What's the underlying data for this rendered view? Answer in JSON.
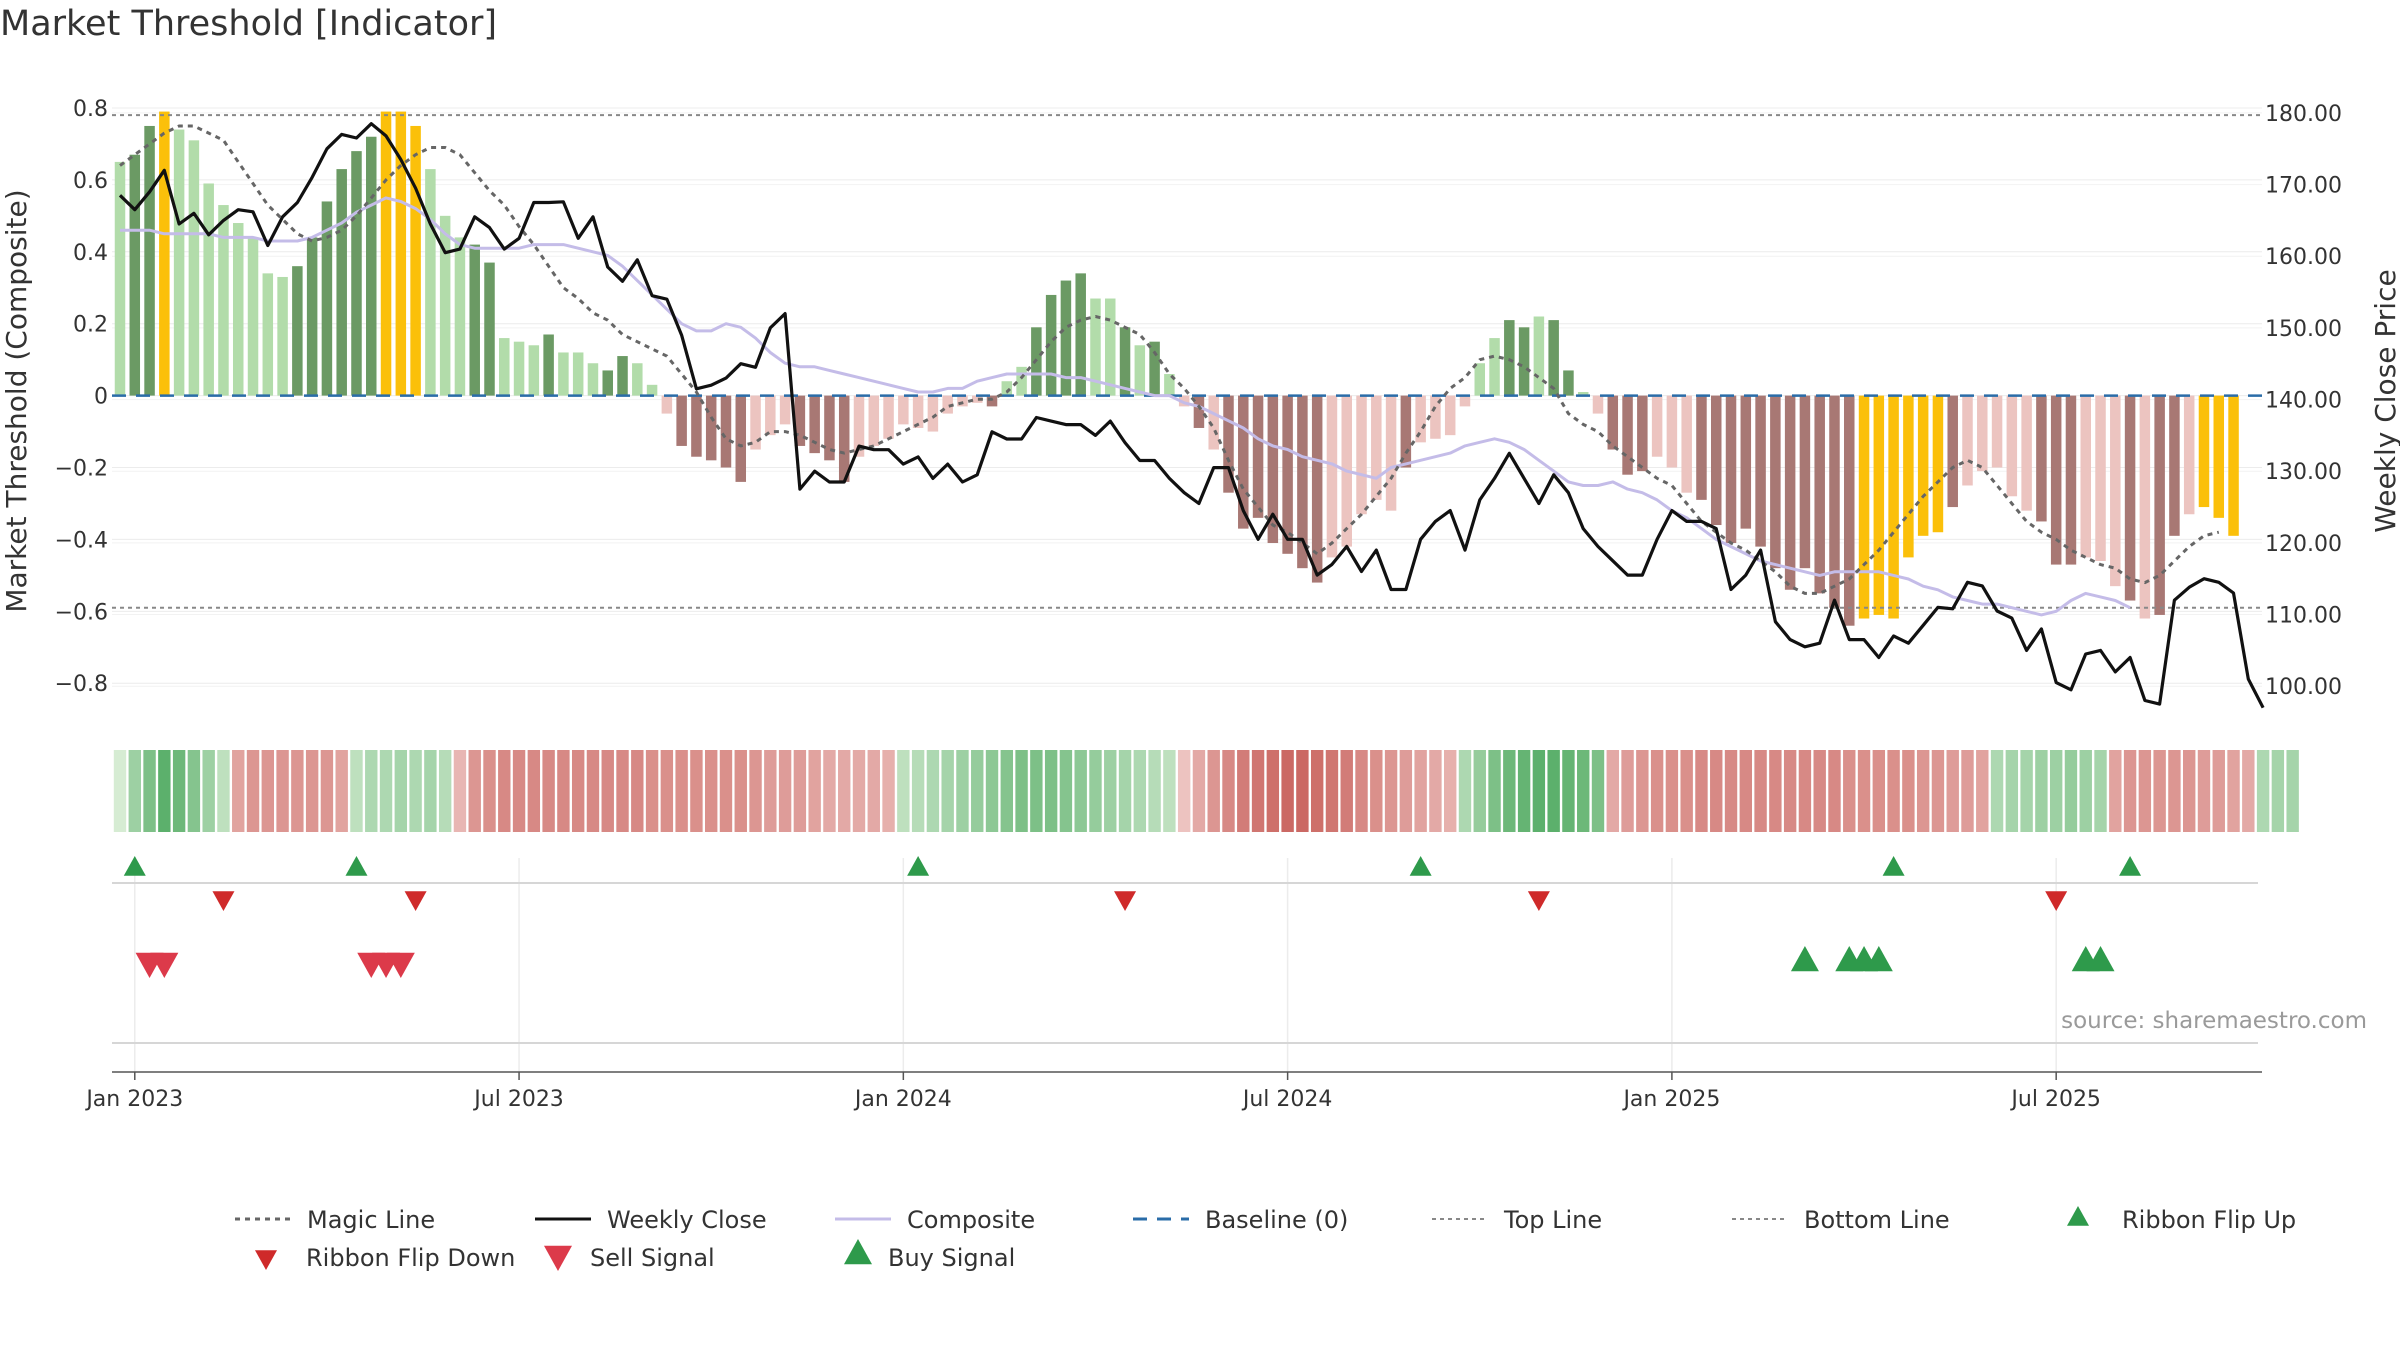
{
  "title": "Market Threshold [Indicator]",
  "source": "source: sharemaestro.com",
  "colors": {
    "magic": "#666666",
    "close": "#111111",
    "composite": "#c4bce8",
    "baseline": "#2a6ca8",
    "guides": "#888888",
    "bull_light": "#b2dcaa",
    "bull_dark": "#6b9a64",
    "extreme": "#fbc00a",
    "bear_light": "#ecc4c0",
    "bear_dark": "#a87874",
    "flip_up": "#2e9a4b",
    "flip_down": "#cf2a2a",
    "sell": "#dc3a4a",
    "buy": "#2e9a4b"
  },
  "chart_data": {
    "type": "bar",
    "title": "Market Threshold [Indicator]",
    "ylabel": "Market Threshold (Composite)",
    "y2label": "Weekly Close Price",
    "ylim": [
      -0.88,
      0.85
    ],
    "y2lim": [
      96.4,
      183.2
    ],
    "yticks": [
      {
        "v": 0.8,
        "t": "0.8"
      },
      {
        "v": 0.6,
        "t": "0.6"
      },
      {
        "v": 0.4,
        "t": "0.4"
      },
      {
        "v": 0.2,
        "t": "0.2"
      },
      {
        "v": 0,
        "t": "0"
      },
      {
        "v": -0.2,
        "t": "−0.2"
      },
      {
        "v": -0.4,
        "t": "−0.4"
      },
      {
        "v": -0.6,
        "t": "−0.6"
      },
      {
        "v": -0.8,
        "t": "−0.8"
      }
    ],
    "y2ticks": [
      {
        "v": 180,
        "t": "180.00"
      },
      {
        "v": 170,
        "t": "170.00"
      },
      {
        "v": 160,
        "t": "160.00"
      },
      {
        "v": 150,
        "t": "150.00"
      },
      {
        "v": 140,
        "t": "140.00"
      },
      {
        "v": 130,
        "t": "130.00"
      },
      {
        "v": 120,
        "t": "120.00"
      },
      {
        "v": 110,
        "t": "110.00"
      },
      {
        "v": 100,
        "t": "100.00"
      }
    ],
    "xticks": [
      {
        "i": 1,
        "t": "Jan 2023"
      },
      {
        "i": 27,
        "t": "Jul 2023"
      },
      {
        "i": 53,
        "t": "Jan 2024"
      },
      {
        "i": 79,
        "t": "Jul 2024"
      },
      {
        "i": 105,
        "t": "Jan 2025"
      },
      {
        "i": 131,
        "t": "Jul 2025"
      }
    ],
    "top_line": 0.78,
    "bottom_line": -0.59,
    "grid": true,
    "legend": "bottom",
    "bars": [
      0.65,
      0.67,
      0.75,
      0.79,
      0.74,
      0.71,
      0.59,
      0.53,
      0.48,
      0.44,
      0.34,
      0.33,
      0.36,
      0.44,
      0.54,
      0.63,
      0.68,
      0.72,
      0.79,
      0.79,
      0.75,
      0.63,
      0.5,
      0.44,
      0.42,
      0.37,
      0.16,
      0.15,
      0.14,
      0.17,
      0.12,
      0.12,
      0.09,
      0.07,
      0.11,
      0.09,
      0.03,
      -0.05,
      -0.14,
      -0.17,
      -0.18,
      -0.2,
      -0.24,
      -0.15,
      -0.11,
      -0.08,
      -0.14,
      -0.16,
      -0.18,
      -0.24,
      -0.17,
      -0.14,
      -0.12,
      -0.08,
      -0.09,
      -0.1,
      -0.05,
      -0.03,
      -0.02,
      -0.03,
      0.04,
      0.08,
      0.19,
      0.28,
      0.32,
      0.34,
      0.27,
      0.27,
      0.19,
      0.14,
      0.15,
      0.06,
      -0.03,
      -0.09,
      -0.15,
      -0.27,
      -0.37,
      -0.34,
      -0.41,
      -0.44,
      -0.48,
      -0.52,
      -0.45,
      -0.42,
      -0.33,
      -0.29,
      -0.32,
      -0.2,
      -0.13,
      -0.12,
      -0.11,
      -0.03,
      0.09,
      0.16,
      0.21,
      0.19,
      0.22,
      0.21,
      0.07,
      0.01,
      -0.05,
      -0.15,
      -0.22,
      -0.21,
      -0.17,
      -0.2,
      -0.27,
      -0.29,
      -0.36,
      -0.41,
      -0.37,
      -0.42,
      -0.48,
      -0.54,
      -0.48,
      -0.55,
      -0.59,
      -0.64,
      -0.62,
      -0.61,
      -0.62,
      -0.45,
      -0.39,
      -0.38,
      -0.31,
      -0.25,
      -0.21,
      -0.2,
      -0.28,
      -0.32,
      -0.35,
      -0.47,
      -0.47,
      -0.45,
      -0.46,
      -0.53,
      -0.57,
      -0.62,
      -0.61,
      -0.39,
      -0.33,
      -0.31,
      -0.34,
      -0.39
    ],
    "bar_kind": [
      "bl",
      "bd",
      "bd",
      "ex",
      "bl",
      "bl",
      "bl",
      "bl",
      "bl",
      "bl",
      "bl",
      "bl",
      "bd",
      "bd",
      "bd",
      "bd",
      "bd",
      "bd",
      "ex",
      "ex",
      "ex",
      "bl",
      "bl",
      "bl",
      "bd",
      "bd",
      "bl",
      "bl",
      "bl",
      "bd",
      "bl",
      "bl",
      "bl",
      "bd",
      "bd",
      "bl",
      "bl",
      "rl",
      "rd",
      "rd",
      "rd",
      "rd",
      "rd",
      "rl",
      "rl",
      "rl",
      "rd",
      "rd",
      "rd",
      "rd",
      "rl",
      "rl",
      "rl",
      "rl",
      "rl",
      "rl",
      "rl",
      "rl",
      "rl",
      "rd",
      "bl",
      "bl",
      "bd",
      "bd",
      "bd",
      "bd",
      "bl",
      "bl",
      "bd",
      "bl",
      "bd",
      "bl",
      "rl",
      "rd",
      "rl",
      "rd",
      "rd",
      "rd",
      "rd",
      "rd",
      "rd",
      "rd",
      "rl",
      "rl",
      "rl",
      "rl",
      "rl",
      "rd",
      "rl",
      "rl",
      "rl",
      "rl",
      "bl",
      "bl",
      "bd",
      "bd",
      "bl",
      "bd",
      "bd",
      "bl",
      "rl",
      "rd",
      "rd",
      "rd",
      "rl",
      "rl",
      "rl",
      "rd",
      "rd",
      "rd",
      "rd",
      "rd",
      "rd",
      "rd",
      "rd",
      "rd",
      "rd",
      "rd",
      "ex",
      "ex",
      "ex",
      "ex",
      "ex",
      "ex",
      "rd",
      "rl",
      "rl",
      "rl",
      "rl",
      "rl",
      "rd",
      "rd",
      "rd",
      "rl",
      "rl",
      "rl",
      "rd",
      "rl",
      "rd",
      "rd",
      "rl",
      "ex",
      "ex",
      "ex",
      "rl",
      "rl",
      "rd",
      "rd"
    ],
    "series": [
      {
        "name": "Magic Line",
        "axis": "left",
        "values": [
          0.64,
          0.67,
          0.7,
          0.73,
          0.75,
          0.75,
          0.73,
          0.71,
          0.65,
          0.59,
          0.53,
          0.49,
          0.45,
          0.43,
          0.44,
          0.46,
          0.5,
          0.55,
          0.6,
          0.64,
          0.67,
          0.69,
          0.69,
          0.67,
          0.62,
          0.57,
          0.53,
          0.47,
          0.42,
          0.36,
          0.3,
          0.27,
          0.23,
          0.21,
          0.17,
          0.15,
          0.13,
          0.11,
          0.06,
          0.01,
          -0.06,
          -0.12,
          -0.14,
          -0.13,
          -0.1,
          -0.1,
          -0.11,
          -0.13,
          -0.15,
          -0.16,
          -0.15,
          -0.14,
          -0.12,
          -0.1,
          -0.08,
          -0.06,
          -0.03,
          -0.02,
          -0.01,
          -0.01,
          0.01,
          0.05,
          0.1,
          0.15,
          0.19,
          0.21,
          0.22,
          0.21,
          0.19,
          0.17,
          0.12,
          0.06,
          0.02,
          -0.03,
          -0.09,
          -0.18,
          -0.26,
          -0.31,
          -0.36,
          -0.38,
          -0.41,
          -0.44,
          -0.41,
          -0.37,
          -0.33,
          -0.28,
          -0.23,
          -0.16,
          -0.1,
          -0.03,
          0.02,
          0.05,
          0.1,
          0.11,
          0.1,
          0.08,
          0.05,
          0.02,
          -0.05,
          -0.08,
          -0.1,
          -0.14,
          -0.17,
          -0.2,
          -0.23,
          -0.25,
          -0.3,
          -0.35,
          -0.38,
          -0.41,
          -0.43,
          -0.46,
          -0.49,
          -0.53,
          -0.55,
          -0.55,
          -0.53,
          -0.51,
          -0.47,
          -0.43,
          -0.38,
          -0.33,
          -0.28,
          -0.24,
          -0.2,
          -0.18,
          -0.2,
          -0.25,
          -0.3,
          -0.35,
          -0.38,
          -0.4,
          -0.43,
          -0.45,
          -0.47,
          -0.48,
          -0.51,
          -0.52,
          -0.5,
          -0.46,
          -0.42,
          -0.39,
          -0.38
        ]
      },
      {
        "name": "Weekly Close",
        "axis": "right",
        "values": [
          168.5,
          166.5,
          169,
          172,
          164.5,
          166,
          163,
          165,
          166.5,
          166.2,
          161.5,
          165.5,
          167.5,
          171,
          175,
          177,
          176.5,
          178.5,
          176.8,
          173.5,
          169.5,
          164.5,
          160.5,
          161,
          165.5,
          164,
          161,
          162.5,
          167.5,
          167.5,
          167.6,
          162.5,
          165.5,
          158.5,
          156.5,
          159.5,
          154.5,
          154,
          149,
          141.5,
          142,
          143,
          145,
          144.5,
          150,
          152,
          127.5,
          130,
          128.5,
          128.5,
          133.5,
          133,
          133,
          131,
          132,
          129,
          131,
          128.5,
          129.5,
          135.5,
          134.5,
          134.5,
          137.5,
          137,
          136.5,
          136.5,
          135,
          137,
          134,
          131.5,
          131.5,
          129,
          127,
          125.5,
          130.5,
          130.5,
          124.5,
          120.5,
          124,
          120.5,
          120.5,
          115.5,
          117,
          119.5,
          116,
          119,
          113.5,
          113.5,
          120.5,
          123,
          124.5,
          119,
          126,
          129,
          132.5,
          129,
          125.5,
          129.5,
          127,
          122,
          119.5,
          117.5,
          115.5,
          115.5,
          120.5,
          124.5,
          123,
          123,
          122,
          113.5,
          115.5,
          119,
          109,
          106.5,
          105.5,
          106,
          112,
          106.5,
          106.5,
          104,
          107,
          106,
          108.5,
          111,
          110.8,
          114.5,
          114,
          110.5,
          109.5,
          105,
          108,
          100.5,
          99.5,
          104.5,
          105,
          102,
          104,
          98,
          97.5,
          112,
          113.8,
          115,
          114.5,
          113,
          101,
          97
        ]
      },
      {
        "name": "Composite",
        "axis": "left",
        "values": [
          0.46,
          0.46,
          0.46,
          0.45,
          0.45,
          0.45,
          0.45,
          0.44,
          0.44,
          0.44,
          0.43,
          0.43,
          0.43,
          0.44,
          0.46,
          0.48,
          0.51,
          0.53,
          0.55,
          0.54,
          0.52,
          0.49,
          0.45,
          0.42,
          0.41,
          0.41,
          0.41,
          0.41,
          0.42,
          0.42,
          0.42,
          0.41,
          0.4,
          0.39,
          0.36,
          0.32,
          0.28,
          0.24,
          0.2,
          0.18,
          0.18,
          0.2,
          0.19,
          0.16,
          0.12,
          0.09,
          0.08,
          0.08,
          0.07,
          0.06,
          0.05,
          0.04,
          0.03,
          0.02,
          0.01,
          0.01,
          0.02,
          0.02,
          0.04,
          0.05,
          0.06,
          0.06,
          0.06,
          0.06,
          0.05,
          0.05,
          0.04,
          0.03,
          0.02,
          0.01,
          0,
          0,
          -0.02,
          -0.03,
          -0.05,
          -0.07,
          -0.09,
          -0.12,
          -0.14,
          -0.15,
          -0.17,
          -0.18,
          -0.19,
          -0.21,
          -0.22,
          -0.23,
          -0.2,
          -0.19,
          -0.18,
          -0.17,
          -0.16,
          -0.14,
          -0.13,
          -0.12,
          -0.13,
          -0.15,
          -0.18,
          -0.21,
          -0.24,
          -0.25,
          -0.25,
          -0.24,
          -0.26,
          -0.27,
          -0.29,
          -0.32,
          -0.34,
          -0.37,
          -0.4,
          -0.42,
          -0.44,
          -0.46,
          -0.47,
          -0.48,
          -0.49,
          -0.5,
          -0.49,
          -0.49,
          -0.49,
          -0.49,
          -0.5,
          -0.51,
          -0.53,
          -0.54,
          -0.56,
          -0.57,
          -0.58,
          -0.58,
          -0.59,
          -0.6,
          -0.61,
          -0.6,
          -0.57,
          -0.55,
          -0.56,
          -0.57,
          -0.59
        ]
      },
      {
        "name": "Baseline (0)",
        "axis": "left",
        "values": [
          0
        ]
      },
      {
        "name": "Top Line",
        "axis": "left",
        "values": [
          0.78
        ]
      },
      {
        "name": "Bottom Line",
        "axis": "left",
        "values": [
          -0.59
        ]
      }
    ],
    "ribbon": [
      0.05,
      0.4,
      0.6,
      0.8,
      0.7,
      0.55,
      0.4,
      0.2,
      -0.4,
      -0.5,
      -0.5,
      -0.5,
      -0.5,
      -0.5,
      -0.5,
      -0.4,
      0.2,
      0.3,
      0.3,
      0.35,
      0.3,
      0.35,
      0.25,
      -0.25,
      -0.5,
      -0.55,
      -0.6,
      -0.6,
      -0.6,
      -0.6,
      -0.6,
      -0.6,
      -0.6,
      -0.6,
      -0.6,
      -0.6,
      -0.55,
      -0.55,
      -0.55,
      -0.55,
      -0.55,
      -0.55,
      -0.55,
      -0.5,
      -0.45,
      -0.45,
      -0.45,
      -0.4,
      -0.35,
      -0.35,
      -0.35,
      -0.35,
      -0.3,
      0.2,
      0.25,
      0.3,
      0.35,
      0.4,
      0.45,
      0.5,
      0.55,
      0.6,
      0.6,
      0.6,
      0.55,
      0.5,
      0.45,
      0.4,
      0.35,
      0.3,
      0.25,
      0.2,
      -0.15,
      -0.35,
      -0.5,
      -0.6,
      -0.7,
      -0.75,
      -0.8,
      -0.85,
      -0.85,
      -0.8,
      -0.75,
      -0.7,
      -0.6,
      -0.55,
      -0.5,
      -0.45,
      -0.4,
      -0.35,
      -0.3,
      0.3,
      0.45,
      0.6,
      0.7,
      0.75,
      0.8,
      0.8,
      0.75,
      0.7,
      0.6,
      -0.35,
      -0.45,
      -0.5,
      -0.55,
      -0.55,
      -0.55,
      -0.6,
      -0.6,
      -0.6,
      -0.6,
      -0.6,
      -0.6,
      -0.6,
      -0.6,
      -0.6,
      -0.6,
      -0.55,
      -0.55,
      -0.55,
      -0.55,
      -0.55,
      -0.5,
      -0.5,
      -0.45,
      -0.45,
      -0.4,
      0.3,
      0.35,
      0.35,
      0.4,
      0.4,
      0.45,
      0.4,
      0.35,
      -0.4,
      -0.5,
      -0.5,
      -0.5,
      -0.5,
      -0.5,
      -0.45,
      -0.45,
      -0.4,
      -0.35,
      0.3,
      0.35,
      0.35
    ],
    "ribbon_flip_up": [
      1,
      16,
      54,
      88,
      120,
      136
    ],
    "ribbon_flip_down": [
      7,
      20,
      68,
      96,
      131
    ],
    "sell_signal": [
      2,
      3,
      17,
      18,
      19
    ],
    "buy_signal": [
      114,
      117,
      118,
      119,
      133,
      134
    ],
    "legend_items": [
      {
        "key": "magic",
        "label": "Magic Line"
      },
      {
        "key": "close",
        "label": "Weekly Close"
      },
      {
        "key": "composite",
        "label": "Composite"
      },
      {
        "key": "baseline",
        "label": "Baseline (0)"
      },
      {
        "key": "top",
        "label": "Top Line"
      },
      {
        "key": "bottom",
        "label": "Bottom Line"
      },
      {
        "key": "flip_up",
        "label": "Ribbon Flip Up"
      },
      {
        "key": "flip_down",
        "label": "Ribbon Flip Down"
      },
      {
        "key": "sell",
        "label": "Sell Signal"
      },
      {
        "key": "buy",
        "label": "Buy Signal"
      }
    ]
  }
}
